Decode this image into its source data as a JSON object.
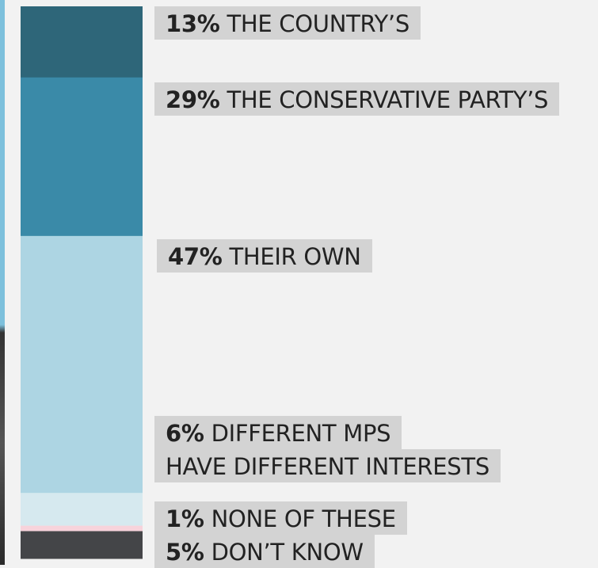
{
  "chart_data": {
    "type": "bar",
    "stacked": true,
    "orientation": "vertical",
    "series": [
      {
        "pct": "13%",
        "label": "THE COUNTRY’S",
        "value": 13,
        "color": "#2e6679"
      },
      {
        "pct": "29%",
        "label": "THE CONSERVATIVE PARTY’S",
        "value": 29,
        "color": "#3a8aa8"
      },
      {
        "pct": "47%",
        "label": "THEIR OWN",
        "value": 47,
        "color": "#add5e3"
      },
      {
        "pct": "6%",
        "label": "DIFFERENT MPS",
        "label2": "HAVE DIFFERENT INTERESTS",
        "value": 6,
        "color": "#d6e9ef"
      },
      {
        "pct": "1%",
        "label": "NONE OF THESE",
        "value": 1,
        "color": "#f7d3db"
      },
      {
        "pct": "5%",
        "label": "DON’T KNOW",
        "value": 5,
        "color": "#444548"
      }
    ]
  }
}
